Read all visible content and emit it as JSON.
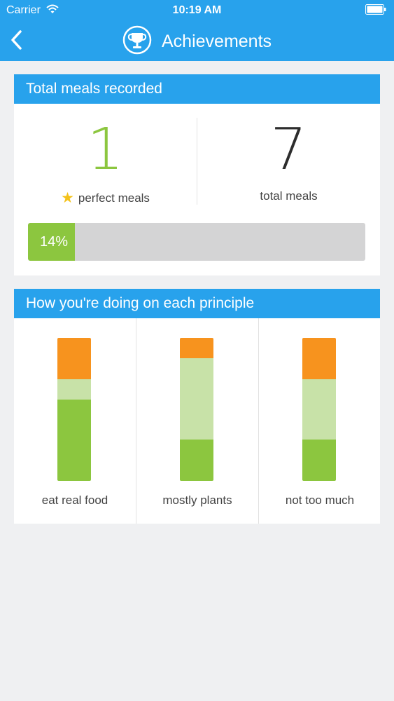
{
  "status_bar": {
    "carrier": "Carrier",
    "time": "10:19 AM"
  },
  "nav": {
    "title": "Achievements"
  },
  "meals_card": {
    "title": "Total meals recorded",
    "perfect": {
      "value": "1",
      "label": "perfect meals"
    },
    "total": {
      "value": "7",
      "label": "total meals"
    },
    "progress": {
      "percent": 14,
      "label": "14%"
    }
  },
  "principles_card": {
    "title": "How you're doing on each principle",
    "principles": [
      {
        "label": "eat real food",
        "orange": 0.29,
        "light": 0.14,
        "green": 0.57
      },
      {
        "label": "mostly plants",
        "orange": 0.14,
        "light": 0.57,
        "green": 0.29
      },
      {
        "label": "not too much",
        "orange": 0.29,
        "light": 0.42,
        "green": 0.29
      }
    ]
  },
  "colors": {
    "header_blue": "#28a2ec",
    "green": "#8cc63f",
    "light_green": "#c8e2a8",
    "orange": "#f7931e",
    "background": "#eff0f2"
  }
}
